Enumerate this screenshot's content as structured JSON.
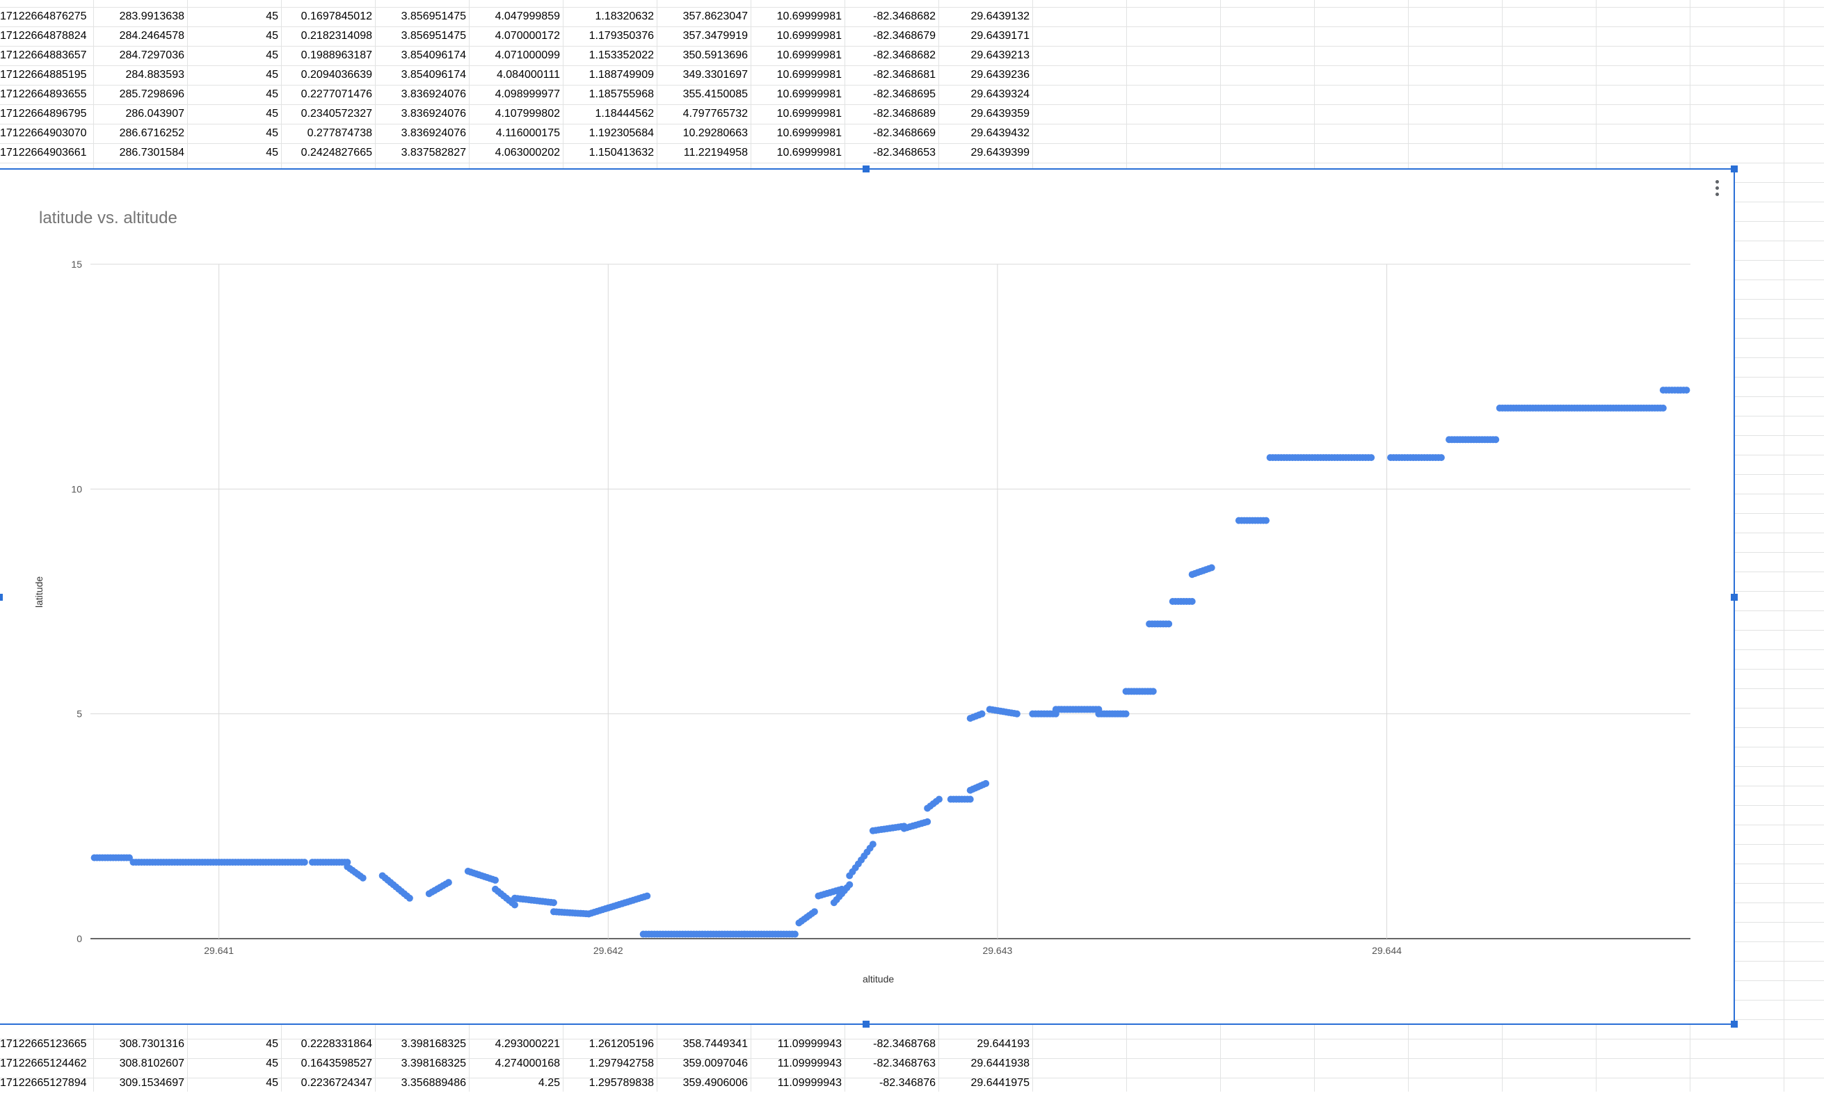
{
  "top_rows": [
    [
      "17122664876275",
      "283.9913638",
      "45",
      "0.1697845012",
      "3.856951475",
      "4.047999859",
      "1.18320632",
      "357.8623047",
      "10.69999981",
      "-82.3468682",
      "29.6439132"
    ],
    [
      "17122664878824",
      "284.2464578",
      "45",
      "0.2182314098",
      "3.856951475",
      "4.070000172",
      "1.179350376",
      "357.3479919",
      "10.69999981",
      "-82.3468679",
      "29.6439171"
    ],
    [
      "17122664883657",
      "284.7297036",
      "45",
      "0.1988963187",
      "3.854096174",
      "4.071000099",
      "1.153352022",
      "350.5913696",
      "10.69999981",
      "-82.3468682",
      "29.6439213"
    ],
    [
      "17122664885195",
      "284.883593",
      "45",
      "0.2094036639",
      "3.854096174",
      "4.084000111",
      "1.188749909",
      "349.3301697",
      "10.69999981",
      "-82.3468681",
      "29.6439236"
    ],
    [
      "17122664893655",
      "285.7298696",
      "45",
      "0.2277071476",
      "3.836924076",
      "4.098999977",
      "1.185755968",
      "355.4150085",
      "10.69999981",
      "-82.3468695",
      "29.6439324"
    ],
    [
      "17122664896795",
      "286.043907",
      "45",
      "0.2340572327",
      "3.836924076",
      "4.107999802",
      "1.18444562",
      "4.797765732",
      "10.69999981",
      "-82.3468689",
      "29.6439359"
    ],
    [
      "17122664903070",
      "286.6716252",
      "45",
      "0.277874738",
      "3.836924076",
      "4.116000175",
      "1.192305684",
      "10.29280663",
      "10.69999981",
      "-82.3468669",
      "29.6439432"
    ],
    [
      "17122664903661",
      "286.7301584",
      "45",
      "0.2424827665",
      "3.837582827",
      "4.063000202",
      "1.150413632",
      "11.22194958",
      "10.69999981",
      "-82.3468653",
      "29.6439399"
    ]
  ],
  "bottom_rows": [
    [
      "17122665123665",
      "308.7301316",
      "45",
      "0.2228331864",
      "3.398168325",
      "4.293000221",
      "1.261205196",
      "358.7449341",
      "11.09999943",
      "-82.3468768",
      "29.644193"
    ],
    [
      "17122665124462",
      "308.8102607",
      "45",
      "0.1643598527",
      "3.398168325",
      "4.274000168",
      "1.297942758",
      "359.0097046",
      "11.09999943",
      "-82.3468763",
      "29.6441938"
    ],
    [
      "17122665127894",
      "309.1534697",
      "45",
      "0.2236724347",
      "3.356889486",
      "4.25",
      "1.295789838",
      "359.4906006",
      "11.09999943",
      "-82.346876",
      "29.6441975"
    ]
  ],
  "chart": {
    "menu_icon": "more-vert-icon",
    "accent_color": "#2a6fd6",
    "point_color": "#4a86e8"
  },
  "chart_data": {
    "type": "scatter",
    "title": "latitude vs. altitude",
    "xlabel": "altitude",
    "ylabel": "latitude",
    "xlim": [
      29.64067,
      29.64478
    ],
    "ylim": [
      0,
      15
    ],
    "xticks": [
      "29.641",
      "29.642",
      "29.643",
      "29.644"
    ],
    "xtick_values": [
      29.641,
      29.642,
      29.643,
      29.644
    ],
    "yticks": [
      "0",
      "5",
      "10",
      "15"
    ],
    "ytick_values": [
      0,
      5,
      10,
      15
    ],
    "grid": true,
    "series": [
      {
        "segments": [
          [
            29.64068,
            29.64077,
            1.8,
            1.8
          ],
          [
            29.64078,
            29.64122,
            1.7,
            1.7
          ],
          [
            29.64124,
            29.64133,
            1.7,
            1.7
          ],
          [
            29.64133,
            29.64137,
            1.6,
            1.35
          ],
          [
            29.64142,
            29.64149,
            1.4,
            0.9
          ],
          [
            29.64154,
            29.64159,
            1.0,
            1.25
          ],
          [
            29.64164,
            29.64171,
            1.5,
            1.3
          ],
          [
            29.64171,
            29.64176,
            1.1,
            0.75
          ],
          [
            29.64176,
            29.64186,
            0.9,
            0.8
          ],
          [
            29.64186,
            29.64195,
            0.6,
            0.55
          ],
          [
            29.64195,
            29.6421,
            0.55,
            0.95
          ],
          [
            29.64209,
            29.64235,
            0.1,
            0.1
          ],
          [
            29.64235,
            29.64248,
            0.1,
            0.1
          ],
          [
            29.64249,
            29.64253,
            0.35,
            0.6
          ],
          [
            29.64254,
            29.6426,
            0.95,
            1.1
          ],
          [
            29.64258,
            29.64262,
            0.8,
            1.2
          ],
          [
            29.64262,
            29.64268,
            1.4,
            2.1
          ],
          [
            29.64268,
            29.64276,
            2.4,
            2.5
          ],
          [
            29.64276,
            29.64282,
            2.45,
            2.6
          ],
          [
            29.64282,
            29.64285,
            2.9,
            3.1
          ],
          [
            29.64288,
            29.64293,
            3.1,
            3.1
          ],
          [
            29.64293,
            29.64297,
            3.3,
            3.45
          ],
          [
            29.64293,
            29.64296,
            4.9,
            5.0
          ],
          [
            29.64298,
            29.64305,
            5.1,
            5.0
          ],
          [
            29.64309,
            29.64315,
            5.0,
            5.0
          ],
          [
            29.64315,
            29.64326,
            5.1,
            5.1
          ],
          [
            29.64326,
            29.64333,
            5.0,
            5.0
          ],
          [
            29.64333,
            29.6434,
            5.5,
            5.5
          ],
          [
            29.64339,
            29.64344,
            7.0,
            7.0
          ],
          [
            29.64345,
            29.6435,
            7.5,
            7.5
          ],
          [
            29.6435,
            29.64355,
            8.1,
            8.25
          ],
          [
            29.64362,
            29.64369,
            9.3,
            9.3
          ],
          [
            29.6437,
            29.64396,
            10.7,
            10.7
          ],
          [
            29.64401,
            29.64414,
            10.7,
            10.7
          ],
          [
            29.64416,
            29.64428,
            11.1,
            11.1
          ],
          [
            29.64429,
            29.64471,
            11.8,
            11.8
          ],
          [
            29.64471,
            29.64477,
            12.2,
            12.2
          ]
        ]
      }
    ]
  }
}
